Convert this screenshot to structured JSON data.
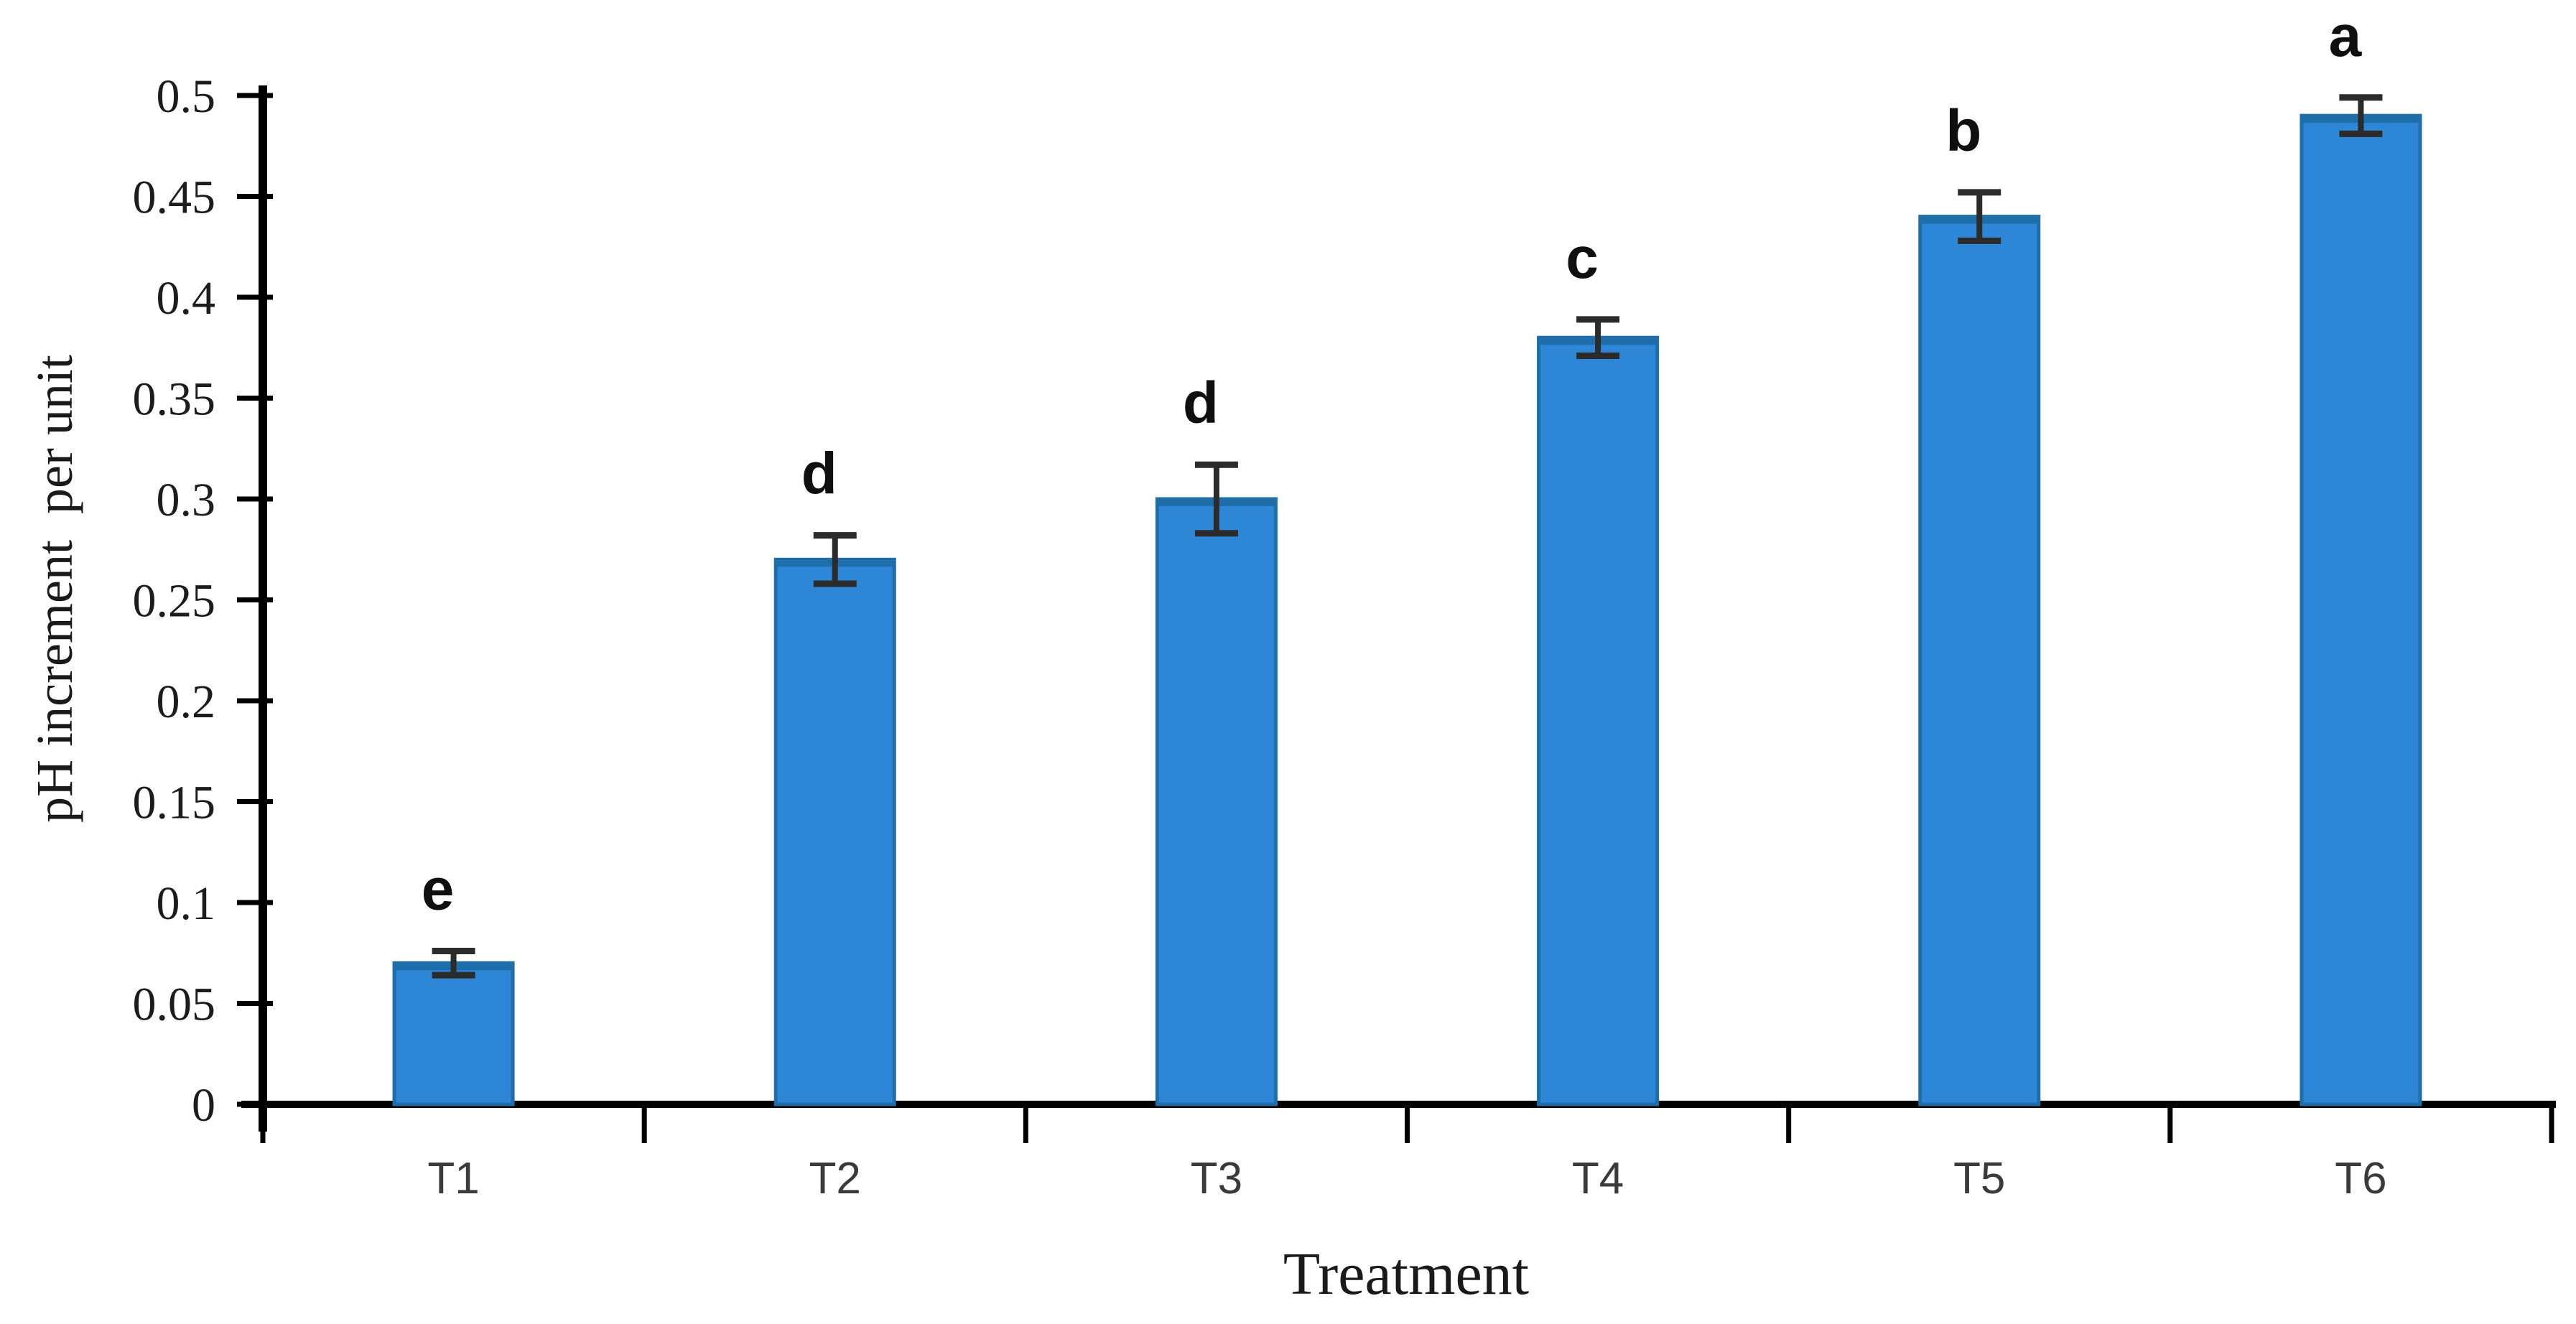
{
  "chart_data": {
    "type": "bar",
    "title": "",
    "xlabel": "Treatment",
    "ylabel": "pH increment  per unit",
    "categories": [
      "T1",
      "T2",
      "T3",
      "T4",
      "T5",
      "T6"
    ],
    "series": [
      {
        "name": "pH increment per unit",
        "values": [
          0.07,
          0.27,
          0.3,
          0.38,
          0.44,
          0.49
        ],
        "errors": [
          0.006,
          0.012,
          0.017,
          0.009,
          0.012,
          0.009
        ],
        "sig_letters": [
          "e",
          "d",
          "d",
          "c",
          "b",
          "a"
        ]
      }
    ],
    "ylim": [
      0,
      0.5
    ],
    "ytick_step": 0.05,
    "ytick_labels": [
      "0",
      "0.05",
      "0.1",
      "0.15",
      "0.2",
      "0.25",
      "0.3",
      "0.35",
      "0.4",
      "0.45",
      "0.5"
    ],
    "grid": false,
    "legend": null,
    "colors": {
      "bar_fill": "#2E86D6",
      "bar_edge": "#1E6FA9",
      "error_bar": "#2b2b2b",
      "axis": "#000000",
      "tick_text": "#1c1c1c",
      "background": "#ffffff"
    }
  }
}
